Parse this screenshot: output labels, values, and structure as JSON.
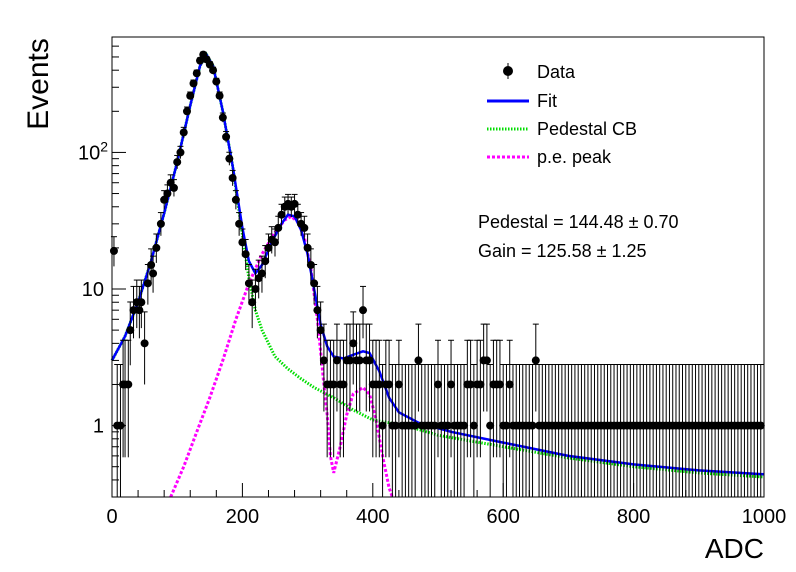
{
  "chart_data": {
    "type": "scatter",
    "xlabel": "ADC",
    "ylabel": "Events",
    "xlim": [
      0,
      1000
    ],
    "ylim": [
      0.3,
      700
    ],
    "yscale": "log",
    "x_ticks": [
      "0",
      "200",
      "400",
      "600",
      "800",
      "1000"
    ],
    "y_ticks": [
      {
        "value": 1,
        "base": "1",
        "exp": ""
      },
      {
        "value": 10,
        "base": "10",
        "exp": ""
      },
      {
        "value": 100,
        "base": "10",
        "exp": "2"
      }
    ],
    "legend": {
      "placement": "top-right",
      "entries": [
        {
          "label": "Data",
          "style": "marker"
        },
        {
          "label": "Fit",
          "style": "solid",
          "color": "#0000ff"
        },
        {
          "label": "Pedestal CB",
          "style": "dotted",
          "color": "#00dd00"
        },
        {
          "label": "p.e. peak",
          "style": "dashed",
          "color": "#ff00ff"
        }
      ]
    },
    "annotations": [
      {
        "name": "Pedestal",
        "value": "144.48",
        "error": "0.70"
      },
      {
        "name": "Gain",
        "value": "125.58",
        "error": "1.25"
      }
    ],
    "series": [
      {
        "name": "Data",
        "points": [
          [
            3,
            19
          ],
          [
            8,
            1
          ],
          [
            13,
            1
          ],
          [
            17,
            2
          ],
          [
            20,
            2
          ],
          [
            25,
            2
          ],
          [
            28,
            5
          ],
          [
            33,
            7
          ],
          [
            38,
            8
          ],
          [
            42,
            7
          ],
          [
            45,
            8
          ],
          [
            50,
            4
          ],
          [
            55,
            11
          ],
          [
            60,
            15
          ],
          [
            63,
            13
          ],
          [
            68,
            20
          ],
          [
            75,
            30
          ],
          [
            80,
            45
          ],
          [
            85,
            50
          ],
          [
            90,
            60
          ],
          [
            95,
            55
          ],
          [
            100,
            85
          ],
          [
            105,
            100
          ],
          [
            110,
            140
          ],
          [
            115,
            200
          ],
          [
            120,
            260
          ],
          [
            125,
            320
          ],
          [
            130,
            380
          ],
          [
            135,
            470
          ],
          [
            140,
            520
          ],
          [
            145,
            480
          ],
          [
            150,
            440
          ],
          [
            155,
            400
          ],
          [
            160,
            330
          ],
          [
            165,
            260
          ],
          [
            170,
            180
          ],
          [
            175,
            130
          ],
          [
            180,
            90
          ],
          [
            185,
            65
          ],
          [
            190,
            45
          ],
          [
            195,
            30
          ],
          [
            200,
            22
          ],
          [
            205,
            18
          ],
          [
            210,
            11
          ],
          [
            215,
            8
          ],
          [
            220,
            10
          ],
          [
            225,
            12
          ],
          [
            230,
            13
          ],
          [
            235,
            16
          ],
          [
            240,
            20
          ],
          [
            245,
            23
          ],
          [
            250,
            22
          ],
          [
            255,
            28
          ],
          [
            260,
            35
          ],
          [
            265,
            40
          ],
          [
            270,
            42
          ],
          [
            275,
            40
          ],
          [
            280,
            42
          ],
          [
            285,
            35
          ],
          [
            290,
            30
          ],
          [
            295,
            28
          ],
          [
            300,
            20
          ],
          [
            305,
            15
          ],
          [
            310,
            11
          ],
          [
            315,
            7
          ],
          [
            320,
            5
          ],
          [
            325,
            3
          ],
          [
            330,
            2
          ],
          [
            335,
            2
          ],
          [
            340,
            2
          ],
          [
            345,
            3
          ],
          [
            350,
            2
          ],
          [
            355,
            2
          ],
          [
            360,
            3
          ],
          [
            365,
            3
          ],
          [
            370,
            4
          ],
          [
            375,
            3
          ],
          [
            380,
            3
          ],
          [
            385,
            7
          ],
          [
            390,
            3
          ],
          [
            395,
            3
          ],
          [
            400,
            2
          ],
          [
            405,
            2
          ],
          [
            410,
            2
          ],
          [
            415,
            1
          ],
          [
            420,
            2
          ],
          [
            425,
            2
          ],
          [
            430,
            1
          ],
          [
            435,
            1
          ],
          [
            440,
            2
          ],
          [
            445,
            1
          ],
          [
            450,
            1
          ],
          [
            455,
            1
          ],
          [
            460,
            1
          ],
          [
            465,
            1
          ],
          [
            470,
            3
          ],
          [
            475,
            1
          ],
          [
            480,
            1
          ],
          [
            485,
            1
          ],
          [
            490,
            1
          ],
          [
            495,
            1
          ],
          [
            500,
            2
          ],
          [
            505,
            1
          ],
          [
            510,
            1
          ],
          [
            515,
            1
          ],
          [
            520,
            2
          ],
          [
            525,
            1
          ],
          [
            530,
            1
          ],
          [
            535,
            1
          ],
          [
            540,
            1
          ],
          [
            545,
            2
          ],
          [
            550,
            2
          ],
          [
            555,
            1
          ],
          [
            560,
            2
          ],
          [
            565,
            2
          ],
          [
            570,
            3
          ],
          [
            575,
            3
          ],
          [
            580,
            1
          ],
          [
            585,
            2
          ],
          [
            590,
            2
          ],
          [
            595,
            2
          ],
          [
            600,
            1
          ],
          [
            605,
            1
          ],
          [
            610,
            2
          ],
          [
            615,
            1
          ],
          [
            620,
            1
          ],
          [
            625,
            1
          ],
          [
            630,
            1
          ],
          [
            635,
            1
          ],
          [
            640,
            1
          ],
          [
            645,
            1
          ],
          [
            650,
            3
          ],
          [
            655,
            1
          ],
          [
            660,
            1
          ],
          [
            665,
            1
          ],
          [
            670,
            1
          ],
          [
            675,
            1
          ],
          [
            680,
            1
          ],
          [
            685,
            1
          ],
          [
            690,
            1
          ],
          [
            695,
            1
          ],
          [
            700,
            1
          ],
          [
            705,
            1
          ],
          [
            710,
            1
          ],
          [
            715,
            1
          ],
          [
            720,
            1
          ],
          [
            725,
            1
          ],
          [
            730,
            1
          ],
          [
            735,
            1
          ],
          [
            740,
            1
          ],
          [
            745,
            1
          ],
          [
            750,
            1
          ],
          [
            755,
            1
          ],
          [
            760,
            1
          ],
          [
            765,
            1
          ],
          [
            770,
            1
          ],
          [
            775,
            1
          ],
          [
            780,
            1
          ],
          [
            785,
            1
          ],
          [
            790,
            1
          ],
          [
            795,
            1
          ],
          [
            800,
            1
          ],
          [
            805,
            1
          ],
          [
            810,
            1
          ],
          [
            815,
            1
          ],
          [
            820,
            1
          ],
          [
            825,
            1
          ],
          [
            830,
            1
          ],
          [
            835,
            1
          ],
          [
            840,
            1
          ],
          [
            845,
            1
          ],
          [
            850,
            1
          ],
          [
            855,
            1
          ],
          [
            860,
            1
          ],
          [
            865,
            1
          ],
          [
            870,
            1
          ],
          [
            875,
            1
          ],
          [
            880,
            1
          ],
          [
            885,
            1
          ],
          [
            890,
            1
          ],
          [
            895,
            1
          ],
          [
            900,
            1
          ],
          [
            905,
            1
          ],
          [
            910,
            1
          ],
          [
            915,
            1
          ],
          [
            920,
            1
          ],
          [
            925,
            1
          ],
          [
            930,
            1
          ],
          [
            935,
            1
          ],
          [
            940,
            1
          ],
          [
            945,
            1
          ],
          [
            950,
            1
          ],
          [
            955,
            1
          ],
          [
            960,
            1
          ],
          [
            965,
            1
          ],
          [
            970,
            1
          ],
          [
            975,
            1
          ],
          [
            980,
            1
          ],
          [
            985,
            1
          ],
          [
            990,
            1
          ],
          [
            995,
            1
          ]
        ]
      },
      {
        "name": "Fit",
        "points": [
          [
            0,
            3
          ],
          [
            20,
            4.5
          ],
          [
            40,
            8
          ],
          [
            60,
            16
          ],
          [
            80,
            36
          ],
          [
            100,
            85
          ],
          [
            120,
            220
          ],
          [
            135,
            430
          ],
          [
            145,
            520
          ],
          [
            155,
            430
          ],
          [
            170,
            200
          ],
          [
            185,
            80
          ],
          [
            200,
            28
          ],
          [
            210,
            16
          ],
          [
            220,
            13
          ],
          [
            230,
            15
          ],
          [
            245,
            22
          ],
          [
            260,
            30
          ],
          [
            270,
            35
          ],
          [
            280,
            34
          ],
          [
            290,
            27
          ],
          [
            300,
            18
          ],
          [
            310,
            10
          ],
          [
            320,
            5.5
          ],
          [
            330,
            3.8
          ],
          [
            340,
            3.2
          ],
          [
            355,
            3.1
          ],
          [
            370,
            3.3
          ],
          [
            385,
            3.5
          ],
          [
            395,
            3.4
          ],
          [
            410,
            2.5
          ],
          [
            425,
            1.6
          ],
          [
            440,
            1.25
          ],
          [
            470,
            1.05
          ],
          [
            520,
            0.9
          ],
          [
            600,
            0.75
          ],
          [
            700,
            0.6
          ],
          [
            800,
            0.52
          ],
          [
            900,
            0.47
          ],
          [
            1000,
            0.44
          ]
        ]
      },
      {
        "name": "Pedestal CB",
        "points": [
          [
            0,
            3
          ],
          [
            20,
            4.5
          ],
          [
            40,
            8
          ],
          [
            60,
            16
          ],
          [
            80,
            36
          ],
          [
            100,
            85
          ],
          [
            120,
            220
          ],
          [
            135,
            430
          ],
          [
            145,
            520
          ],
          [
            155,
            430
          ],
          [
            170,
            200
          ],
          [
            185,
            80
          ],
          [
            200,
            25
          ],
          [
            210,
            12
          ],
          [
            220,
            7
          ],
          [
            230,
            5
          ],
          [
            250,
            3.2
          ],
          [
            270,
            2.6
          ],
          [
            290,
            2.2
          ],
          [
            310,
            1.9
          ],
          [
            340,
            1.6
          ],
          [
            370,
            1.3
          ],
          [
            400,
            1.1
          ],
          [
            450,
            1.0
          ],
          [
            500,
            0.85
          ],
          [
            600,
            0.7
          ],
          [
            700,
            0.58
          ],
          [
            800,
            0.5
          ],
          [
            900,
            0.45
          ],
          [
            1000,
            0.42
          ]
        ]
      },
      {
        "name": "p.e. peak",
        "points": [
          [
            90,
            0.3
          ],
          [
            110,
            0.5
          ],
          [
            130,
            0.9
          ],
          [
            150,
            1.6
          ],
          [
            170,
            3
          ],
          [
            190,
            6
          ],
          [
            210,
            11
          ],
          [
            230,
            18
          ],
          [
            250,
            26
          ],
          [
            265,
            32
          ],
          [
            275,
            34
          ],
          [
            285,
            31
          ],
          [
            295,
            24
          ],
          [
            305,
            14
          ],
          [
            315,
            6
          ],
          [
            325,
            2
          ],
          [
            330,
            1.2
          ],
          [
            335,
            0.6
          ],
          [
            340,
            0.45
          ],
          [
            350,
            0.7
          ],
          [
            360,
            1.2
          ],
          [
            370,
            1.7
          ],
          [
            385,
            1.9
          ],
          [
            395,
            1.7
          ],
          [
            405,
            1.1
          ],
          [
            415,
            0.6
          ],
          [
            425,
            0.35
          ],
          [
            430,
            0.3
          ]
        ]
      }
    ]
  }
}
